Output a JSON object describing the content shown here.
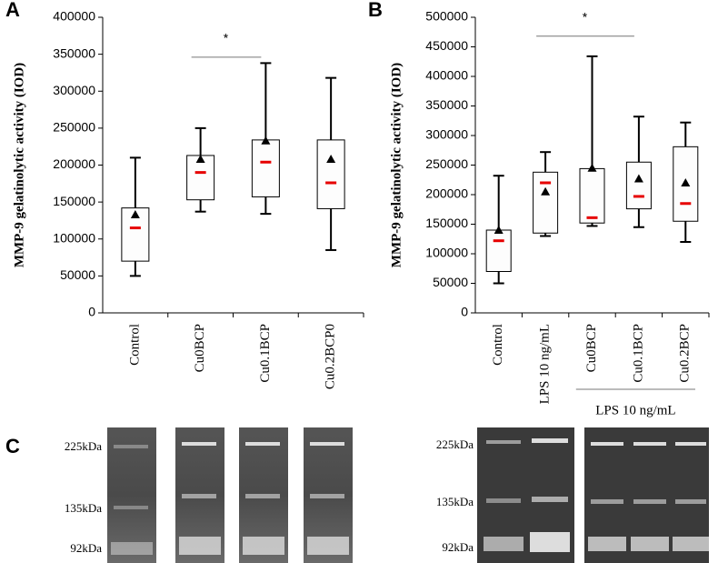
{
  "chart_data": [
    {
      "type": "box",
      "panel": "A",
      "y_label": "MMP-9 gelatinolytic activity (IOD)",
      "categories": [
        "Control",
        "Cu0BCP",
        "Cu0.1BCP",
        "Cu0.2BCP0"
      ],
      "max": [
        210000,
        250000,
        338000,
        318000
      ],
      "q3": [
        142000,
        213000,
        234000,
        234000
      ],
      "median": [
        115000,
        190000,
        204000,
        176000
      ],
      "q1": [
        70000,
        153000,
        157000,
        141000
      ],
      "min": [
        50000,
        137000,
        134000,
        85000
      ],
      "mean": [
        133000,
        208000,
        233000,
        208000
      ],
      "median_color": "#e60000",
      "mean_color": "#000000",
      "ylim": [
        0,
        400000
      ],
      "yticks": [
        0,
        50000,
        100000,
        150000,
        200000,
        250000,
        300000,
        350000,
        400000
      ],
      "significance": {
        "label": "*",
        "from": 1,
        "to": 2,
        "y": 346000
      }
    },
    {
      "type": "box",
      "panel": "B",
      "y_label": "MMP-9 gelatinolytic activity (IOD)",
      "categories": [
        "Control",
        "LPS 10 ng/mL",
        "Cu0BCP",
        "Cu0.1BCP",
        "Cu0.2BCP"
      ],
      "max": [
        232000,
        272000,
        434000,
        332000,
        322000
      ],
      "q3": [
        140000,
        238000,
        244000,
        255000,
        281000
      ],
      "median": [
        122000,
        220000,
        161000,
        197000,
        185000
      ],
      "q1": [
        70000,
        135000,
        152000,
        176000,
        155000
      ],
      "min": [
        50000,
        130000,
        147000,
        145000,
        120000
      ],
      "mean": [
        140000,
        205000,
        245000,
        227000,
        220000
      ],
      "median_color": "#e60000",
      "mean_color": "#000000",
      "ylim": [
        0,
        500000
      ],
      "yticks": [
        0,
        50000,
        100000,
        150000,
        200000,
        250000,
        300000,
        350000,
        400000,
        450000,
        500000
      ],
      "significance": {
        "label": "*",
        "from": 1,
        "to": 3,
        "y": 468000
      },
      "group_label": {
        "text": "LPS 10 ng/mL",
        "from": 2,
        "to": 4
      }
    }
  ],
  "gel": {
    "panel": "C",
    "left_markers": [
      "225kDa",
      "135kDa",
      "92kDa"
    ],
    "right_markers": [
      "225kDa",
      "135kDa",
      "92kDa"
    ]
  }
}
